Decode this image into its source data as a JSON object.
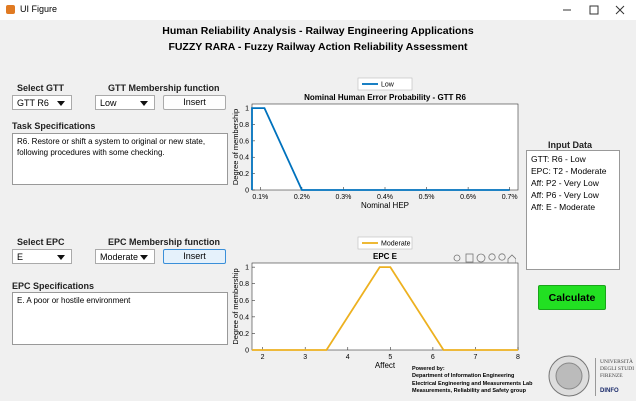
{
  "window": {
    "title": "UI Figure"
  },
  "header": {
    "title": "Human Reliability Analysis  -  Railway Engineering Applications",
    "subtitle": "FUZZY RARA - Fuzzy Railway Action Reliability Assessment"
  },
  "gtt": {
    "label": "Select GTT",
    "membership_label": "GTT Membership function",
    "selected": "GTT R6",
    "membership": "Low",
    "button": "Insert",
    "spec_label": "Task Specifications",
    "spec_text": "R6.  Restore or shift a system to original or new state, following procedures with some checking."
  },
  "epc": {
    "label": "Select EPC",
    "membership_label": "EPC Membership function",
    "selected": "E",
    "membership": "Moderate",
    "button": "Insert",
    "spec_label": "EPC Specifications",
    "spec_text": "E.    A poor or hostile environment"
  },
  "input_data": {
    "label": "Input Data",
    "items": [
      "GTT: R6 - Low",
      "EPC: T2 - Moderate",
      "Aff: P2 - Very Low",
      "Aff: P6 - Very Low",
      "Aff: E - Moderate"
    ]
  },
  "calculate": "Calculate",
  "footer": {
    "powered": "Powered by:",
    "lines": [
      "Department of Information Engineering",
      "Electrical Engineering and Measurements Lab",
      "Measurements, Reliability and Safety group"
    ]
  },
  "logo": {
    "lines": [
      "UNIVERSITÀ",
      "DEGLI STUDI",
      "FIRENZE"
    ],
    "dept": "DINFO"
  },
  "charts": [
    {
      "type": "line",
      "title": "Nominal Human Error Probability - GTT R6",
      "xlabel": "Nominal HEP",
      "ylabel": "Degree of membership",
      "x": [
        0.08,
        0.08,
        0.11,
        0.2,
        0.7
      ],
      "series": [
        {
          "name": "Low",
          "color": "#0072bd",
          "values": [
            0,
            1,
            1,
            0,
            0
          ]
        }
      ],
      "xlim": [
        0.08,
        0.72
      ],
      "ylim": [
        0,
        1.05
      ],
      "xticks": [
        {
          "value": 0.1,
          "label": "0.1%"
        },
        {
          "value": 0.2,
          "label": "0.2%"
        },
        {
          "value": 0.3,
          "label": "0.3%"
        },
        {
          "value": 0.4,
          "label": "0.4%"
        },
        {
          "value": 0.5,
          "label": "0.5%"
        },
        {
          "value": 0.6,
          "label": "0.6%"
        },
        {
          "value": 0.7,
          "label": "0.7%"
        }
      ],
      "yticks": [
        0,
        0.2,
        0.4,
        0.6,
        0.8,
        1
      ],
      "legend": "top"
    },
    {
      "type": "line",
      "title": "EPC E",
      "xlabel": "Affect",
      "ylabel": "Degree of membership",
      "x": [
        1.75,
        3.5,
        4.75,
        5,
        6.25,
        8
      ],
      "series": [
        {
          "name": "Moderate",
          "color": "#edb120",
          "values": [
            0,
            0,
            1,
            1,
            0,
            0
          ]
        }
      ],
      "xlim": [
        1.75,
        8
      ],
      "ylim": [
        0,
        1.05
      ],
      "xticks": [
        2,
        3,
        4,
        5,
        6,
        7,
        8
      ],
      "yticks": [
        0,
        0.2,
        0.4,
        0.6,
        0.8,
        1
      ],
      "legend": "top"
    }
  ]
}
